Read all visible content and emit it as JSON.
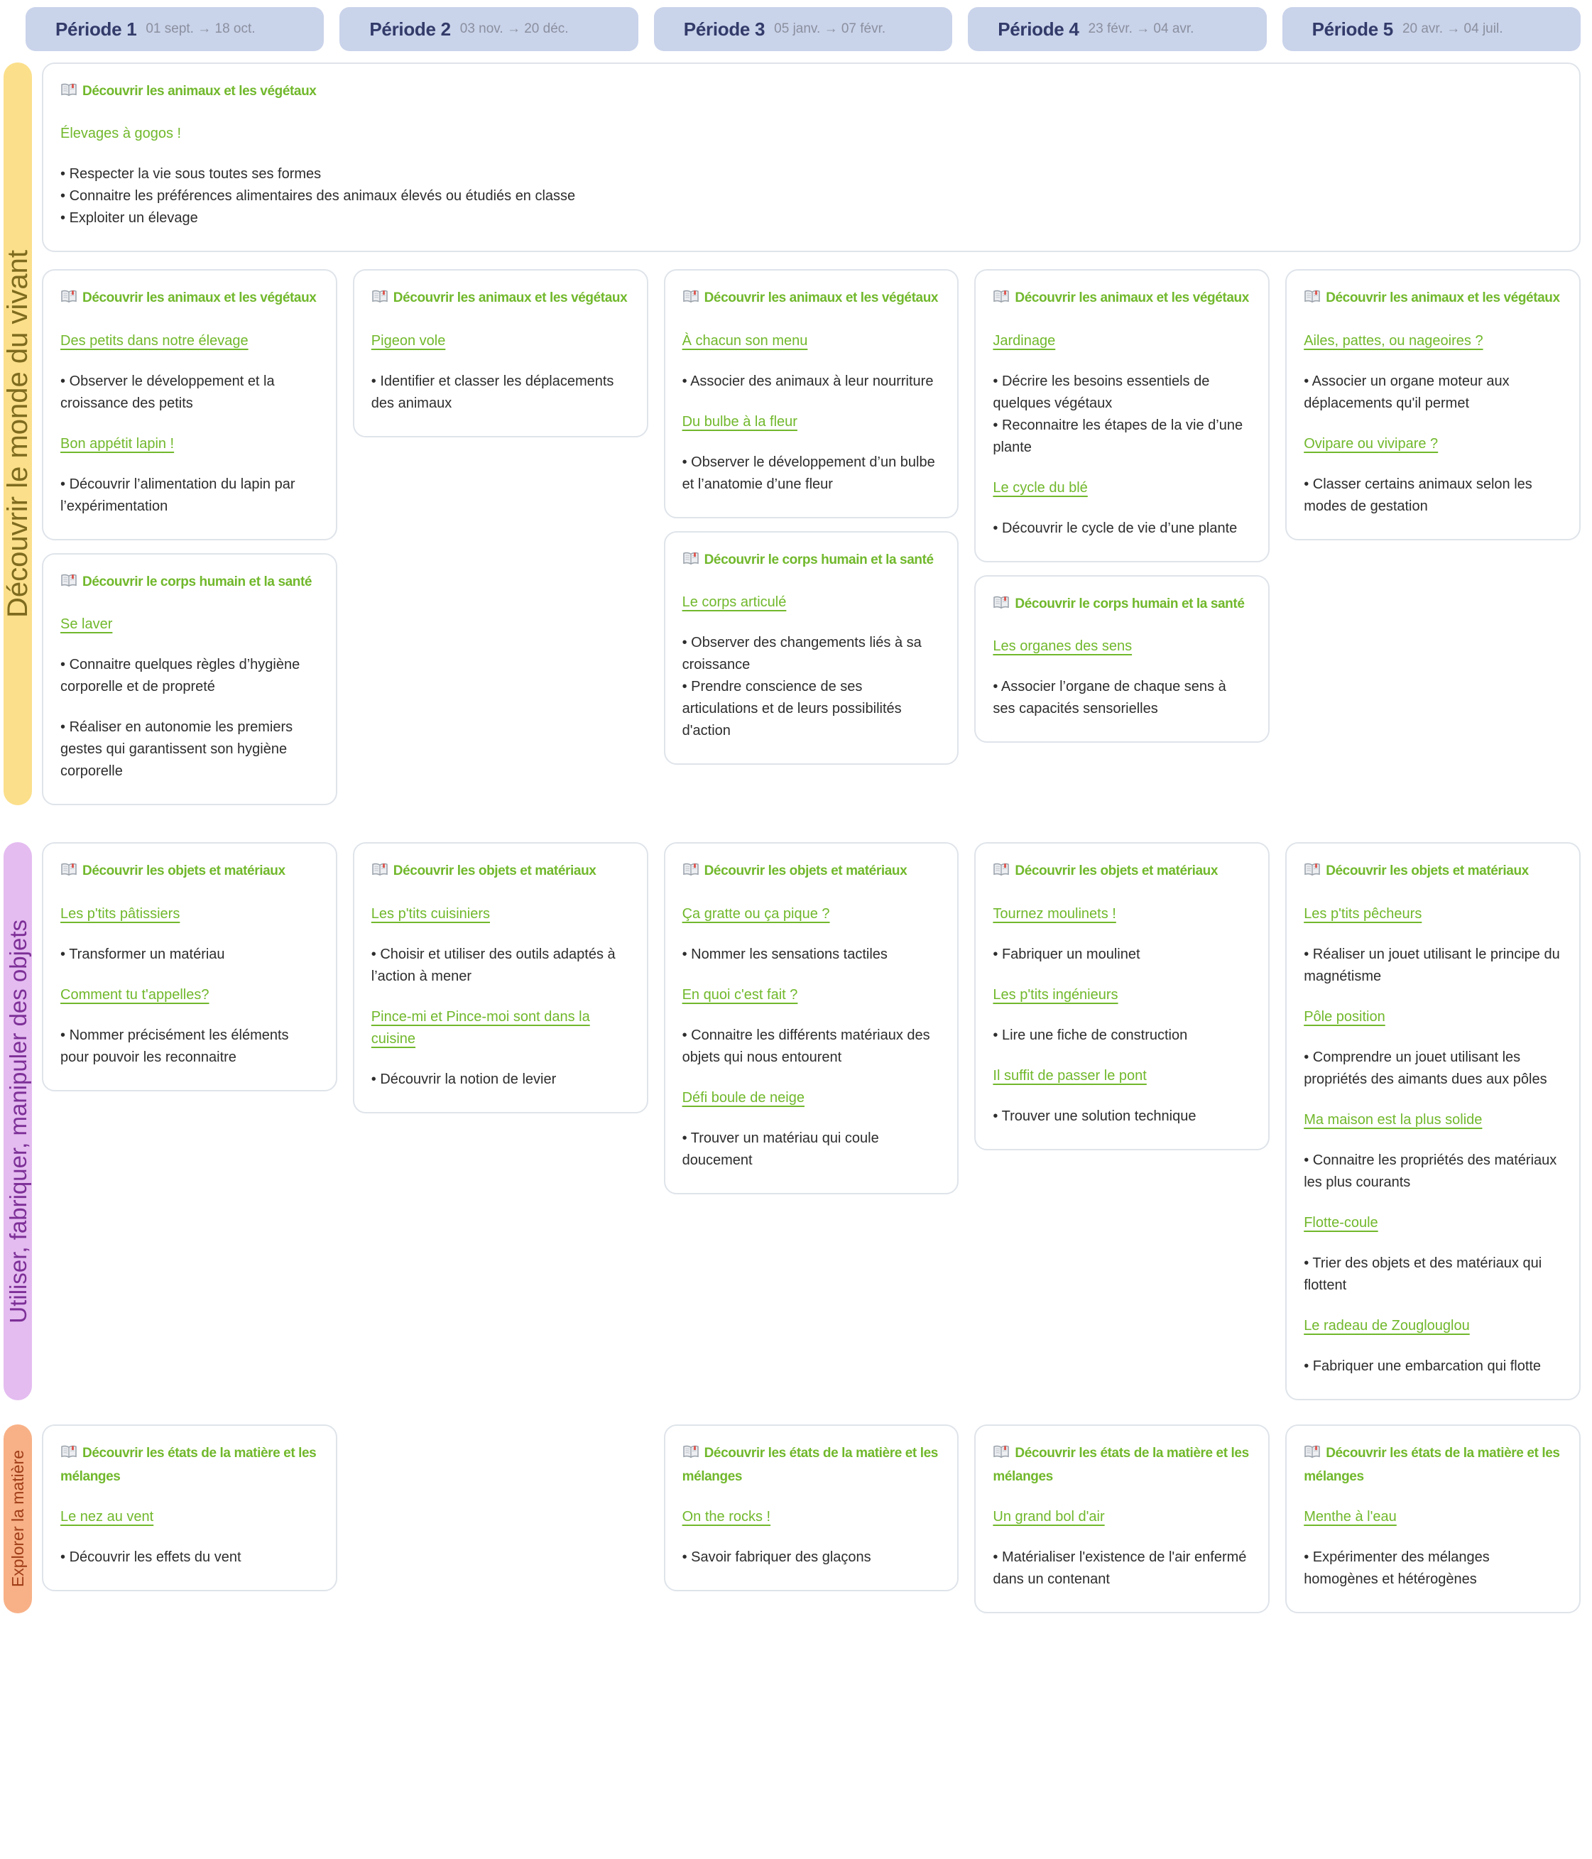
{
  "header": {
    "periods": [
      {
        "label": "Période 1",
        "dates": "01 sept. → 18 oct."
      },
      {
        "label": "Période 2",
        "dates": "03 nov. → 20 déc."
      },
      {
        "label": "Période 3",
        "dates": "05 janv. → 07 févr."
      },
      {
        "label": "Période 4",
        "dates": "23 févr. → 04 avr."
      },
      {
        "label": "Période 5",
        "dates": "20 avr. → 04 juil."
      }
    ]
  },
  "icons": {
    "card_icon": "open-book"
  },
  "colors": {
    "accent_green": "#71b82c",
    "pill_bg": "#c9d3ea",
    "pill_label": "#323b69",
    "pill_date": "#8b909f",
    "card_border": "#dfe4ea",
    "body_text": "#2d2d2d",
    "band_vivant_bg": "#fbdf8b",
    "band_vivant_text": "#7e6b1e",
    "band_objets_bg": "#e4bcf0",
    "band_objets_text": "#7d2f97",
    "band_matiere_bg": "#f8b187",
    "band_matiere_text": "#9f3d17"
  },
  "bands": [
    {
      "id": "monde-du-vivant",
      "label": "Découvrir le monde du vivant",
      "strip_bg": "#fbdf8b",
      "strip_color": "#7e6b1e",
      "full_width_card": {
        "heading": "Découvrir les animaux et les végétaux",
        "entries": [
          {
            "title": "Élevages à gogos !",
            "underline": false,
            "bullets": [
              "Respecter la vie sous toutes ses formes",
              "Connaitre les préférences alimentaires des animaux élevés ou étudiés en classe",
              "Exploiter un élevage"
            ]
          }
        ]
      },
      "columns": [
        [
          {
            "heading": "Découvrir les animaux et les végétaux",
            "entries": [
              {
                "title": "Des petits dans notre élevage",
                "bullets": [
                  "Observer le développement et la croissance des petits"
                ]
              },
              {
                "title": "Bon appétit lapin !",
                "bullets": [
                  "Découvrir l’alimentation du lapin par l’expérimentation"
                ]
              }
            ]
          },
          {
            "heading": "Découvrir le corps humain et la santé",
            "entries": [
              {
                "title": "Se laver",
                "loose": true,
                "bullets": [
                  "Connaitre quelques règles d’hygiène corporelle et de propreté",
                  "Réaliser en autonomie les premiers gestes qui garantissent son hygiène corporelle"
                ]
              }
            ]
          }
        ],
        [
          {
            "heading": "Découvrir les animaux et les végétaux",
            "entries": [
              {
                "title": "Pigeon vole",
                "bullets": [
                  "Identifier et classer les déplacements des animaux"
                ]
              }
            ]
          }
        ],
        [
          {
            "heading": "Découvrir les animaux et les végétaux",
            "entries": [
              {
                "title": "À chacun son menu",
                "bullets": [
                  "Associer des animaux à leur nourriture"
                ]
              },
              {
                "title": "Du bulbe à la fleur",
                "bullets": [
                  "Observer le développement d’un bulbe et l’anatomie d’une fleur"
                ]
              }
            ]
          },
          {
            "heading": "Découvrir le corps humain et la santé",
            "entries": [
              {
                "title": "Le corps articulé",
                "bullets": [
                  "Observer des changements liés à sa croissance",
                  "Prendre conscience de ses articulations et de leurs possibilités d'action"
                ]
              }
            ]
          }
        ],
        [
          {
            "heading": "Découvrir les animaux et les végétaux",
            "entries": [
              {
                "title": "Jardinage",
                "bullets": [
                  "Décrire les besoins essentiels de quelques végétaux",
                  "Reconnaitre les étapes de la vie d’une plante"
                ]
              },
              {
                "title": "Le cycle du blé",
                "bullets": [
                  "Découvrir le cycle de vie d’une plante"
                ]
              }
            ]
          },
          {
            "heading": "Découvrir le corps humain et la santé",
            "entries": [
              {
                "title": "Les organes des sens",
                "bullets": [
                  "Associer l’organe de chaque sens à ses capacités sensorielles"
                ]
              }
            ]
          }
        ],
        [
          {
            "heading": "Découvrir les animaux et les végétaux",
            "entries": [
              {
                "title": "Ailes, pattes, ou nageoires ?",
                "bullets": [
                  "Associer un organe moteur aux déplacements qu'il permet"
                ]
              },
              {
                "title": "Ovipare ou vivipare ?",
                "bullets": [
                  "Classer certains animaux selon les modes de gestation"
                ]
              }
            ]
          }
        ]
      ]
    },
    {
      "id": "objets",
      "label": "Utiliser, fabriquer, manipuler des objets",
      "strip_bg": "#e4bcf0",
      "strip_color": "#7d2f97",
      "full_width_card": null,
      "columns": [
        [
          {
            "heading": "Découvrir les objets et matériaux",
            "entries": [
              {
                "title": "Les p'tits pâtissiers",
                "bullets": [
                  "Transformer un matériau"
                ]
              },
              {
                "title": "Comment tu t'appelles?",
                "bullets": [
                  "Nommer précisément les éléments pour pouvoir les reconnaitre"
                ]
              }
            ]
          }
        ],
        [
          {
            "heading": "Découvrir les objets et matériaux",
            "entries": [
              {
                "title": "Les p'tits cuisiniers",
                "bullets": [
                  "Choisir et utiliser des outils adaptés à l’action à mener"
                ]
              },
              {
                "title": "Pince-mi et Pince-moi sont dans la cuisine",
                "bullets": [
                  "Découvrir la notion de levier"
                ]
              }
            ]
          }
        ],
        [
          {
            "heading": "Découvrir les objets et matériaux",
            "entries": [
              {
                "title": "Ça gratte ou ça pique ?",
                "bullets": [
                  "Nommer les sensations tactiles"
                ]
              },
              {
                "title": "En quoi c'est fait ?",
                "bullets": [
                  "Connaitre les différents matériaux des objets qui nous entourent"
                ]
              },
              {
                "title": "Défi boule de neige",
                "bullets": [
                  "Trouver un matériau qui coule doucement"
                ]
              }
            ]
          }
        ],
        [
          {
            "heading": "Découvrir les objets et matériaux",
            "entries": [
              {
                "title": "Tournez moulinets !",
                "bullets": [
                  "Fabriquer un moulinet"
                ]
              },
              {
                "title": "Les p'tits ingénieurs",
                "bullets": [
                  "Lire une fiche de construction"
                ]
              },
              {
                "title": "Il suffit de passer le pont",
                "bullets": [
                  "Trouver une solution technique"
                ]
              }
            ]
          }
        ],
        [
          {
            "heading": "Découvrir les objets et matériaux",
            "entries": [
              {
                "title": "Les p'tits pêcheurs",
                "bullets": [
                  "Réaliser un jouet utilisant le principe du magnétisme"
                ]
              },
              {
                "title": "Pôle position",
                "bullets": [
                  "Comprendre un jouet utilisant les propriétés des aimants dues aux pôles"
                ]
              },
              {
                "title": "Ma maison est la plus solide",
                "bullets": [
                  "Connaitre les propriétés des matériaux les plus courants"
                ]
              },
              {
                "title": "Flotte-coule",
                "bullets": [
                  "Trier des objets et des matériaux qui flottent"
                ]
              },
              {
                "title": "Le radeau de Zouglouglou",
                "bullets": [
                  "Fabriquer une embarcation qui flotte"
                ]
              }
            ]
          }
        ]
      ]
    },
    {
      "id": "matiere",
      "label": "Explorer la matière",
      "strip_bg": "#f8b187",
      "strip_color": "#9f3d17",
      "full_width_card": null,
      "columns": [
        [
          {
            "heading": "Découvrir les états de la matière et les mélanges",
            "entries": [
              {
                "title": "Le nez au vent",
                "bullets": [
                  "Découvrir les effets du vent"
                ]
              }
            ]
          }
        ],
        [],
        [
          {
            "heading": "Découvrir les états de la matière et les mélanges",
            "entries": [
              {
                "title": "On the rocks !",
                "bullets": [
                  "Savoir fabriquer des glaçons"
                ]
              }
            ]
          }
        ],
        [
          {
            "heading": "Découvrir les états de la matière et les mélanges",
            "entries": [
              {
                "title": "Un grand bol d'air",
                "bullets": [
                  "Matérialiser l'existence de l'air enfermé dans un contenant"
                ]
              }
            ]
          }
        ],
        [
          {
            "heading": "Découvrir les états de la matière et les mélanges",
            "entries": [
              {
                "title": "Menthe à l'eau",
                "bullets": [
                  "Expérimenter des mélanges homogènes et hétérogènes"
                ]
              }
            ]
          }
        ]
      ]
    }
  ]
}
